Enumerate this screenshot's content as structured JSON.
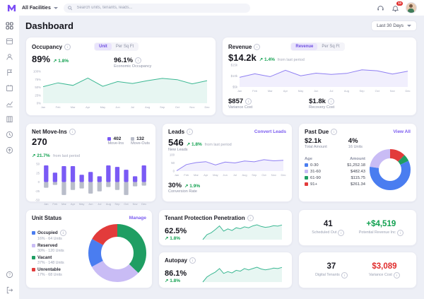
{
  "topbar": {
    "facility": "All Facilities",
    "search_placeholder": "Search units, tenants, leads...",
    "notification_count": "10"
  },
  "header": {
    "title": "Dashboard",
    "range": "Last 30 Days"
  },
  "occupancy": {
    "title": "Occupancy",
    "toggle_unit": "Unit",
    "toggle_sqft": "Per Sq Ft",
    "value": "89%",
    "change": "1.8%",
    "econ_value": "96.1%",
    "econ_label": "Economic Occupancy"
  },
  "revenue": {
    "title": "Revenue",
    "toggle_rev": "Revenue",
    "toggle_sqft": "Per Sq Ft",
    "value": "$14.2k",
    "change": "1.4%",
    "change_note": "from last period",
    "stat1_value": "$857",
    "stat1_label": "Variance Cost",
    "stat2_value": "$1.8k",
    "stat2_label": "Recovery Cost"
  },
  "move_ins": {
    "title": "Net Move-Ins",
    "value": "270",
    "change": "21.7%",
    "change_note": "from last period",
    "legend": [
      {
        "value": "402",
        "label": "Move-Ins"
      },
      {
        "value": "132",
        "label": "Move-Outs"
      }
    ]
  },
  "leads": {
    "title": "Leads",
    "link": "Convert Leads",
    "value": "546",
    "change": "1.8%",
    "change_note": "from last period",
    "value_label": "New Leads",
    "rate_value": "30%",
    "rate_change": "1.9%",
    "rate_label": "Conversion Rate"
  },
  "past_due": {
    "title": "Past Due",
    "link": "View All",
    "total_value": "$2.1k",
    "total_label": "Total Amount",
    "pct_value": "4%",
    "pct_label": "16 Units",
    "table": {
      "headers": [
        "Age",
        "Amount"
      ],
      "rows": [
        {
          "age": "0-30",
          "amount": "$1,252.18"
        },
        {
          "age": "31-60",
          "amount": "$482.43"
        },
        {
          "age": "61-90",
          "amount": "$115.75"
        },
        {
          "age": "91+",
          "amount": "$261.34"
        }
      ]
    }
  },
  "unit_status": {
    "title": "Unit Status",
    "link": "Manage",
    "legend": [
      {
        "label": "Occupied",
        "sub": "16% · 64 Units"
      },
      {
        "label": "Reserved",
        "sub": "30% · 120 Units"
      },
      {
        "label": "Vacant",
        "sub": "37% · 148 Units"
      },
      {
        "label": "Unrentable",
        "sub": "17% · 68 Units"
      }
    ]
  },
  "tenant_protection": {
    "title": "Tenant Protection Penetration",
    "value": "62.5%",
    "change": "1.8%"
  },
  "autopay": {
    "title": "Autopay",
    "value": "86.1%",
    "change": "1.8%"
  },
  "stats": {
    "scheduled_value": "41",
    "scheduled_label": "Scheduled Out",
    "potential_value": "+$4,519",
    "potential_label": "Potential Revenue Inc",
    "digital_value": "37",
    "digital_label": "Digital Tenants",
    "variance_value": "$3,089",
    "variance_label": "Variance Cost"
  },
  "icons": {
    "sidebar": [
      "dashboard-icon",
      "units-icon",
      "tenants-icon",
      "leads-icon",
      "calendar-icon",
      "reports-icon",
      "gate-icon",
      "history-icon",
      "sync-icon",
      "help-icon",
      "logout-icon"
    ],
    "topbar": [
      "search-icon",
      "support-icon",
      "bell-icon",
      "avatar"
    ]
  },
  "colors": {
    "accent": "#7b5cf0",
    "positive": "#12a150",
    "negative": "#e02b2b",
    "line_green": "#3cb893",
    "line_purple": "#8f7ff2",
    "bar_purple": "#7a5af5",
    "bar_gray": "#b9bdca",
    "donut": [
      "#4a7df0",
      "#c9bcf5",
      "#1f9e63",
      "#e23b3b"
    ]
  },
  "chart_data": {
    "months": [
      "Jan",
      "Feb",
      "Mar",
      "Apr",
      "May",
      "Jun",
      "Jul",
      "Aug",
      "Sep",
      "Oct",
      "Nov",
      "Dec"
    ],
    "occupancy": {
      "type": "area",
      "values": [
        52,
        64,
        56,
        79,
        53,
        68,
        62,
        71,
        78,
        74,
        61,
        71
      ],
      "ymin": 0,
      "ymax": 100,
      "ylabels": [
        "100%",
        "75%",
        "50%",
        "25%",
        "0%"
      ],
      "color": "#3cb893"
    },
    "revenue": {
      "type": "area",
      "values": [
        9.4,
        11.0,
        9.7,
        12.6,
        10.1,
        11.3,
        10.7,
        11.2,
        12.8,
        12.4,
        10.9,
        12.2
      ],
      "ymin": 5,
      "ymax": 15,
      "ylabels": [
        "$15k",
        "$10k",
        "$5k"
      ],
      "color": "#8f7ff2"
    },
    "net_move_ins": {
      "type": "bar",
      "pos": [
        46,
        26,
        44,
        44,
        20,
        28,
        16,
        46,
        42,
        34,
        16,
        46
      ],
      "neg": [
        16,
        8,
        36,
        22,
        18,
        32,
        26,
        14,
        22,
        36,
        12,
        10
      ],
      "ymax": 50,
      "ylabels": [
        "50",
        "25",
        "0",
        "-25",
        "-50"
      ],
      "pos_color": "#7a5af5",
      "neg_color": "#b9bdca"
    },
    "leads": {
      "type": "area",
      "values": [
        2,
        40,
        52,
        58,
        38,
        55,
        50,
        62,
        57,
        70,
        63,
        66
      ],
      "ymin": 0,
      "ymax": 100,
      "ylabels": [
        "100",
        "50",
        "0"
      ],
      "color": "#8f7ff2"
    },
    "tenant_protection": {
      "type": "spark",
      "values": [
        8,
        30,
        38,
        52,
        68,
        45,
        55,
        48,
        60,
        56,
        64,
        60,
        68,
        73,
        66,
        62,
        64,
        69,
        67,
        72
      ],
      "color": "#3cb893"
    },
    "autopay": {
      "type": "spark",
      "values": [
        5,
        28,
        40,
        50,
        66,
        44,
        52,
        46,
        58,
        54,
        66,
        60,
        66,
        72,
        64,
        60,
        63,
        68,
        66,
        71
      ],
      "color": "#3cb893"
    },
    "past_due_donut": {
      "type": "pie",
      "values": [
        261.34,
        115.75,
        1252.18,
        482.43
      ],
      "colors": [
        "#e23b3b",
        "#1f9e63",
        "#4a7df0",
        "#c9bcf5"
      ]
    },
    "unit_status_donut": {
      "type": "pie",
      "values": [
        37,
        30,
        16,
        17
      ],
      "colors": [
        "#1f9e63",
        "#c9bcf5",
        "#4a7df0",
        "#e23b3b"
      ]
    }
  }
}
